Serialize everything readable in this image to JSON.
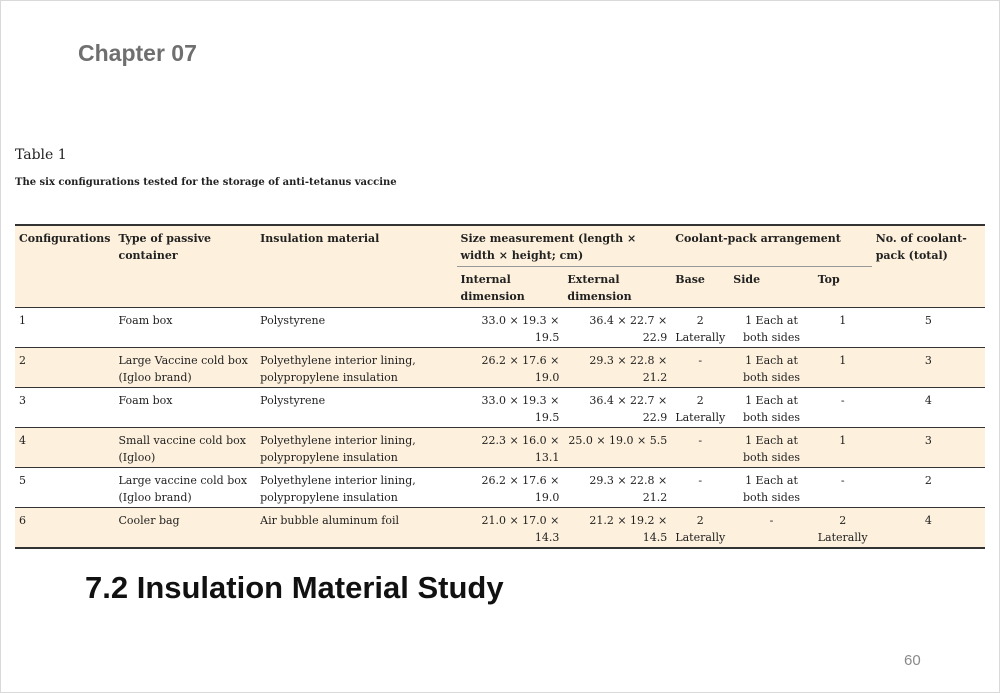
{
  "chapter_title": "Chapter 07",
  "table_label": "Table 1",
  "table_caption": "The six configurations tested for the storage of anti-tetanus vaccine",
  "headers": {
    "configurations": "Configurations",
    "container": "Type of passive container",
    "insulation": "Insulation material",
    "size": "Size measurement (length × width × height; cm)",
    "coolant": "Coolant-pack arrangement",
    "count": "No. of coolant- pack (total)",
    "internal": "Internal dimension",
    "external": "External dimension",
    "base": "Base",
    "side": "Side",
    "top": "Top"
  },
  "rows": [
    {
      "config": "1",
      "container": "Foam box",
      "insulation": "Polystyrene",
      "internal": "33.0 × 19.3 × 19.5",
      "external": "36.4 × 22.7 × 22.9",
      "base": "2 Laterally",
      "side": "1 Each at both sides",
      "top": "1",
      "count": "5"
    },
    {
      "config": "2",
      "container": "Large Vaccine cold box (Igloo brand)",
      "insulation": "Polyethylene interior lining, polypropylene insulation",
      "internal": "26.2 × 17.6 × 19.0",
      "external": "29.3 × 22.8 × 21.2",
      "base": "-",
      "side": "1 Each at both sides",
      "top": "1",
      "count": "3"
    },
    {
      "config": "3",
      "container": "Foam box",
      "insulation": "Polystyrene",
      "internal": "33.0 × 19.3 × 19.5",
      "external": "36.4 × 22.7 × 22.9",
      "base": "2 Laterally",
      "side": "1 Each at both sides",
      "top": "-",
      "count": "4"
    },
    {
      "config": "4",
      "container": "Small vaccine cold box (Igloo)",
      "insulation": "Polyethylene interior lining, polypropylene insulation",
      "internal": "22.3 × 16.0 × 13.1",
      "external": "25.0 × 19.0 × 5.5",
      "base": "-",
      "side": "1 Each at both sides",
      "top": "1",
      "count": "3"
    },
    {
      "config": "5",
      "container": "Large vaccine cold box (Igloo brand)",
      "insulation": "Polyethylene interior lining, polypropylene insulation",
      "internal": "26.2 × 17.6 × 19.0",
      "external": "29.3 × 22.8 × 21.2",
      "base": "-",
      "side": "1 Each at both sides",
      "top": "-",
      "count": "2"
    },
    {
      "config": "6",
      "container": "Cooler bag",
      "insulation": "Air bubble aluminum foil",
      "internal": "21.0 × 17.0 × 14.3",
      "external": "21.2 × 19.2 × 14.5",
      "base": "2 Laterally",
      "side": "-",
      "top": "2 Laterally",
      "count": "4"
    }
  ],
  "section_heading": "7.2 Insulation Material Study",
  "page_number": "60"
}
